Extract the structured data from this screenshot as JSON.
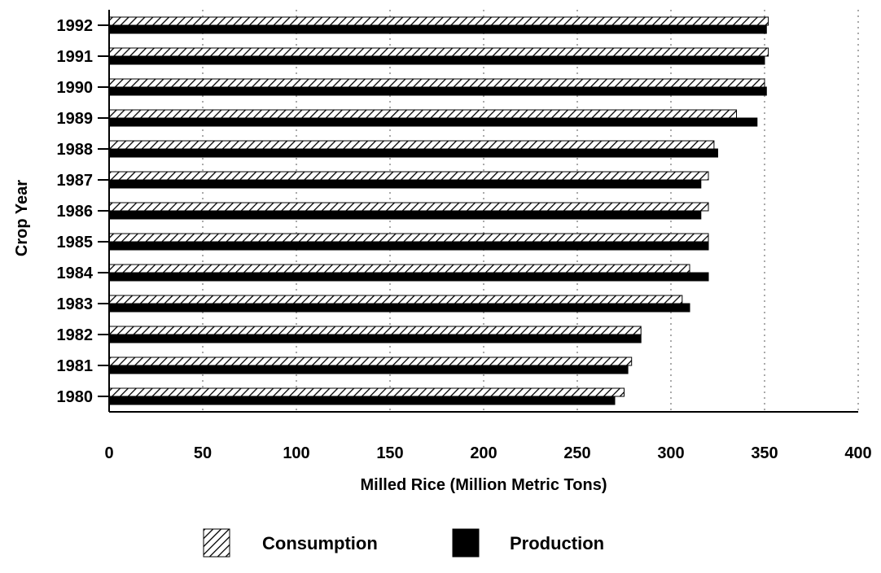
{
  "chart_data": {
    "type": "bar",
    "orientation": "horizontal",
    "categories": [
      "1980",
      "1981",
      "1982",
      "1983",
      "1984",
      "1985",
      "1986",
      "1987",
      "1988",
      "1989",
      "1990",
      "1991",
      "1992"
    ],
    "series": [
      {
        "name": "Consumption",
        "pattern": "hatched",
        "color": "#000000",
        "values": [
          275,
          279,
          284,
          306,
          310,
          320,
          320,
          320,
          323,
          335,
          350,
          352,
          352
        ]
      },
      {
        "name": "Production",
        "pattern": "solid",
        "color": "#000000",
        "values": [
          270,
          277,
          284,
          310,
          320,
          320,
          316,
          316,
          325,
          346,
          351,
          350,
          351
        ]
      }
    ],
    "xlabel": "Milled Rice (Million Metric Tons)",
    "ylabel": "Crop Year",
    "xlim": [
      0,
      400
    ],
    "xticks": [
      "0",
      "50",
      "100",
      "150",
      "200",
      "250",
      "300",
      "350",
      "400"
    ],
    "grid": "vertical dotted",
    "legend_position": "bottom"
  }
}
